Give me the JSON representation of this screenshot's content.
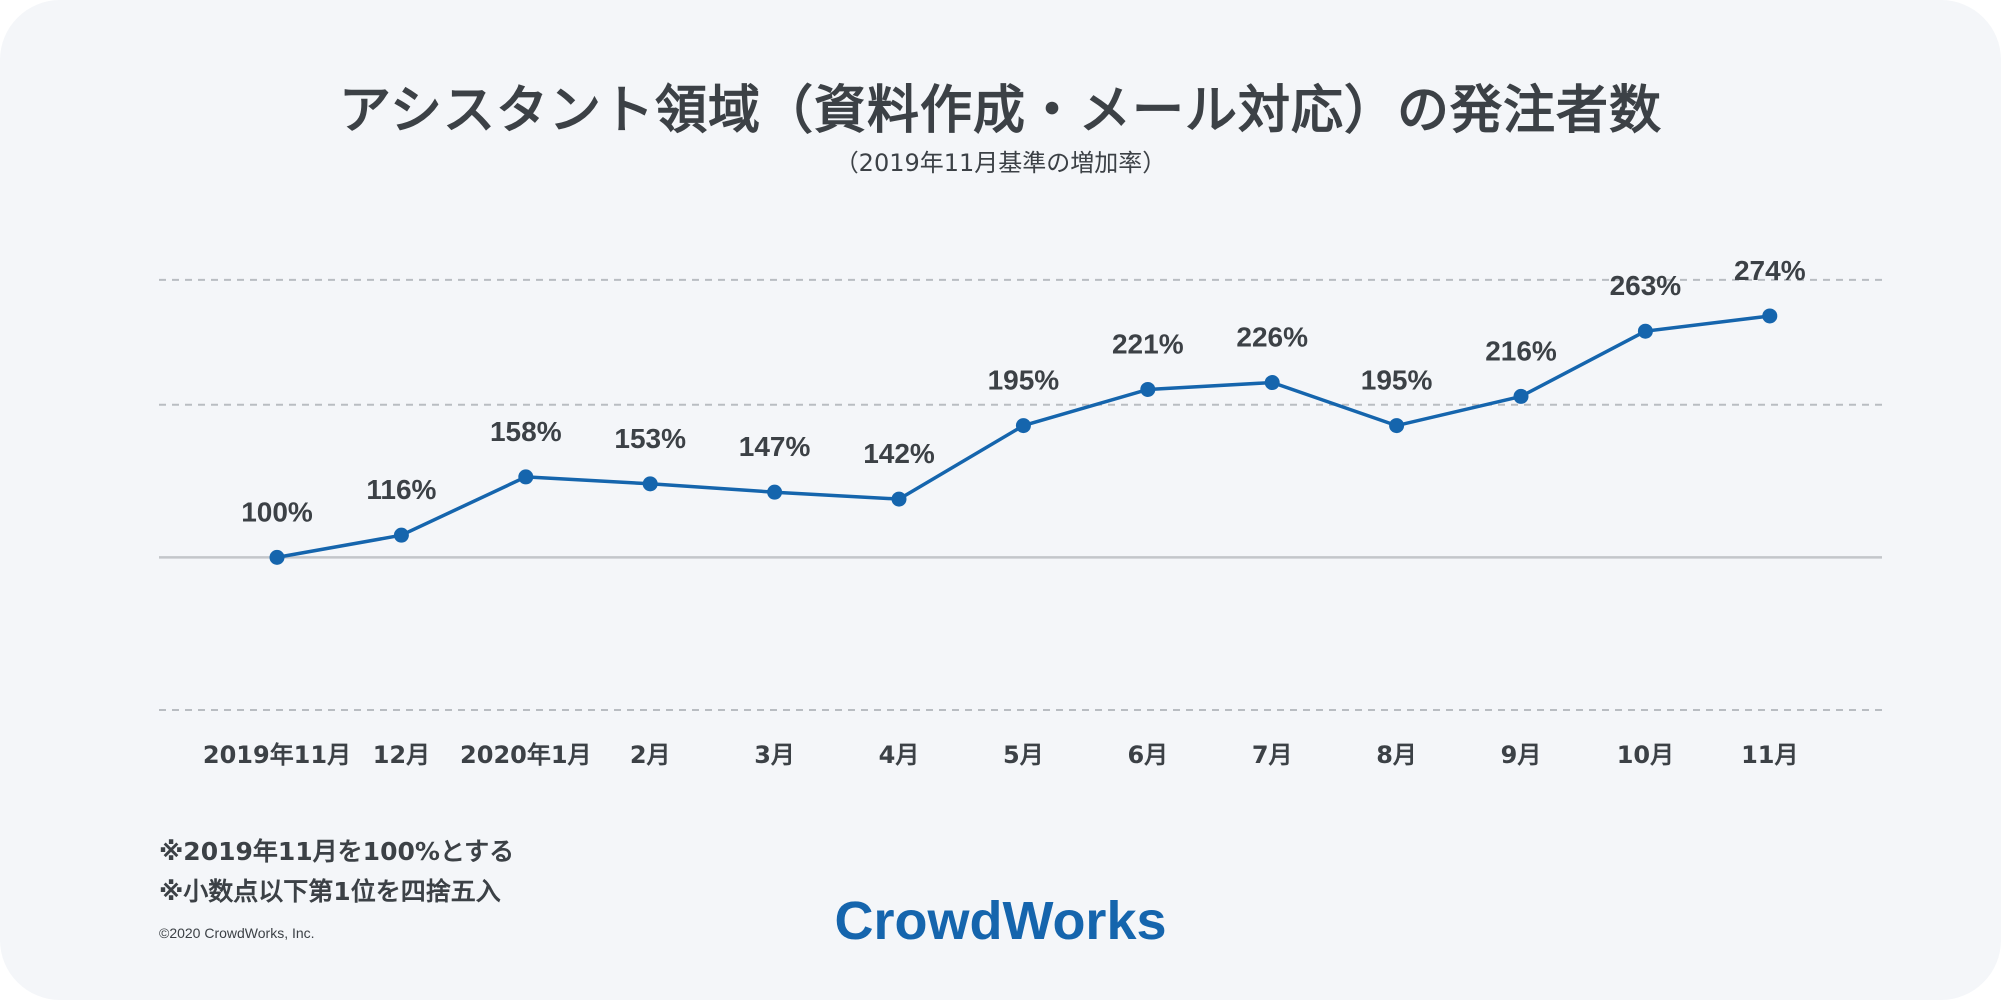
{
  "title": "アシスタント領域（資料作成・メール対応）の発注者数",
  "subtitle": "（2019年11月基準の増加率）",
  "notes": [
    "※2019年11月を100%とする",
    "※小数点以下第1位を四捨五入"
  ],
  "copyright": "©2020 CrowdWorks, Inc.",
  "brand": "CrowdWorks",
  "colors": {
    "line": "#1565ad",
    "text": "#3c4146",
    "grid": "#b9bdc2",
    "baseline": "#c3c6ca",
    "background": "#f4f6f9"
  },
  "chart_data": {
    "type": "line",
    "categories": [
      "2019年11月",
      "12月",
      "2020年1月",
      "2月",
      "3月",
      "4月",
      "5月",
      "6月",
      "7月",
      "8月",
      "9月",
      "10月",
      "11月"
    ],
    "series": [
      {
        "values": [
          100,
          116,
          158,
          153,
          147,
          142,
          195,
          221,
          226,
          195,
          216,
          263,
          274
        ],
        "labels": [
          "100%",
          "116%",
          "158%",
          "153%",
          "147%",
          "142%",
          "195%",
          "221%",
          "226%",
          "195%",
          "216%",
          "263%",
          "274%"
        ]
      }
    ],
    "title": "アシスタント領域（資料作成・メール対応）の発注者数",
    "subtitle": "（2019年11月基準の増加率）",
    "xlabel": "",
    "ylabel": "",
    "ylim": [
      -10,
      310
    ],
    "gridlines": [
      -10,
      100,
      210,
      300
    ],
    "baseline": 100,
    "grid": true,
    "legend": "none"
  }
}
